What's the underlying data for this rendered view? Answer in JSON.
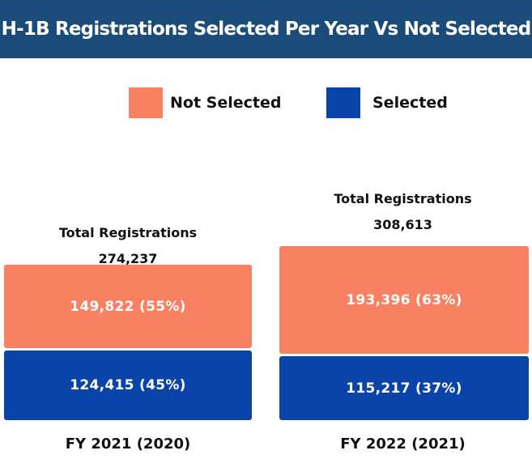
{
  "chart_data": {
    "type": "bar",
    "stacked": true,
    "title": "H-1B Registrations Selected Per Year Vs Not Selected",
    "categories": [
      "FY 2021 (2020)",
      "FY 2022 (2021)"
    ],
    "series": [
      {
        "name": "Not Selected",
        "color": "#f78162",
        "values": [
          149822,
          193396
        ],
        "labels": [
          "149,822 (55%)",
          "193,396 (63%)"
        ]
      },
      {
        "name": "Selected",
        "color": "#0a44a8",
        "values": [
          124415,
          115217
        ],
        "labels": [
          "124,415 (45%)",
          "115,217 (37%)"
        ]
      }
    ],
    "totals": {
      "caption": "Total Registrations",
      "values": [
        274237,
        308613
      ],
      "labels": [
        "274,237",
        "308,613"
      ]
    },
    "legend": "top",
    "grid": false,
    "axes_visible": false
  }
}
